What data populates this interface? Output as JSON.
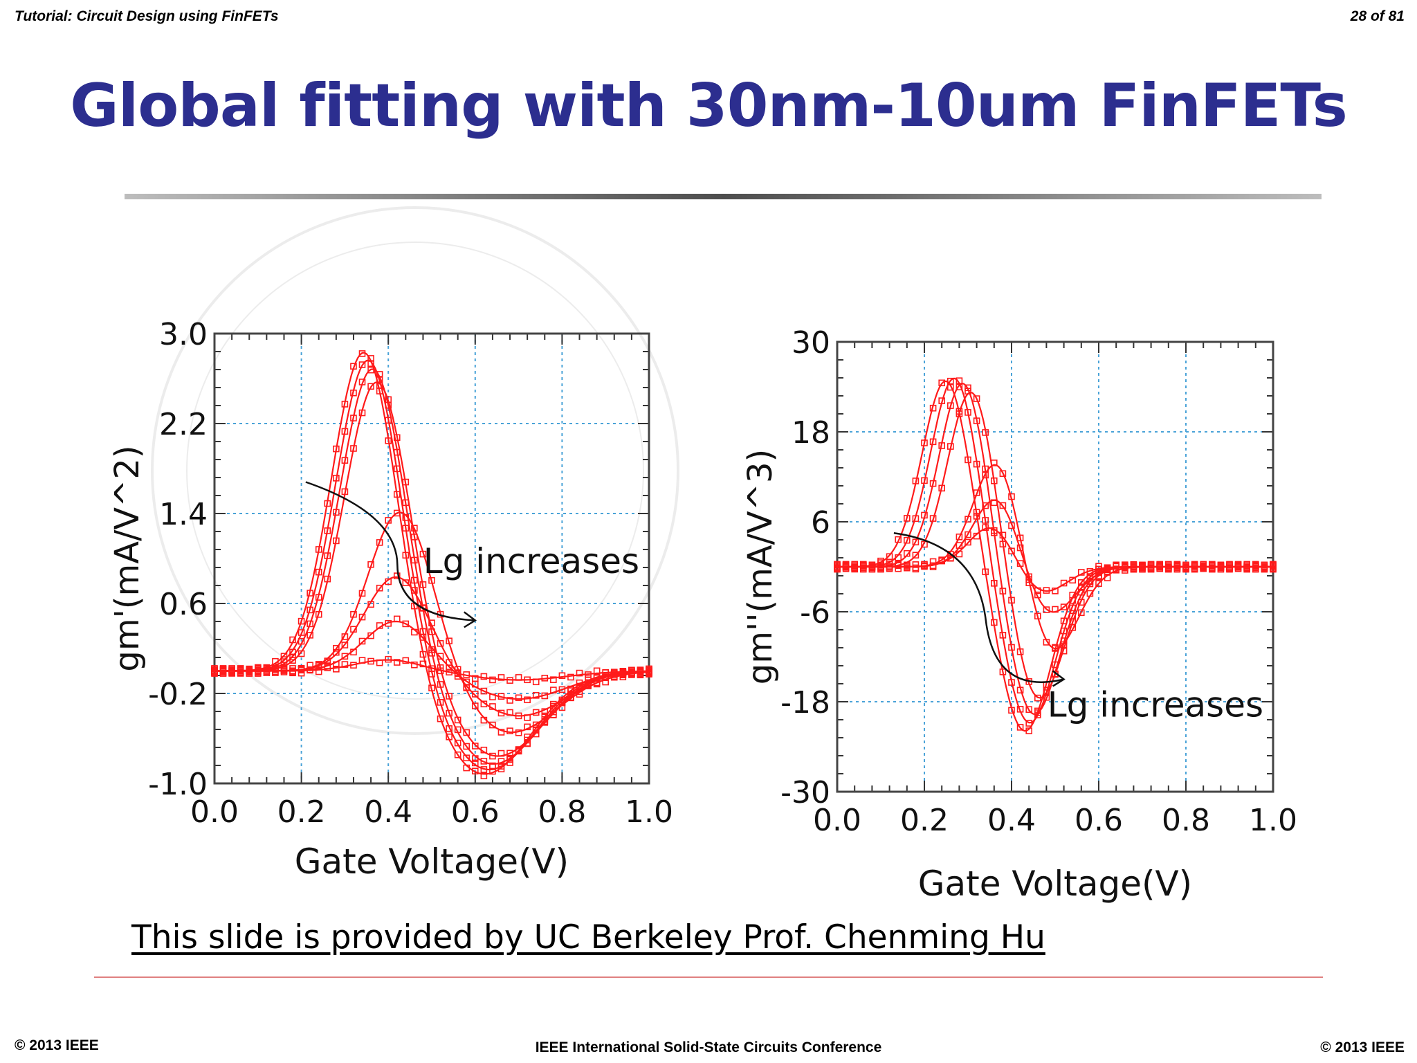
{
  "header": {
    "left": "Tutorial: Circuit Design using FinFETs",
    "right": "28 of 81"
  },
  "title": "Global fitting with 30nm-10um FinFETs",
  "credit": "This slide is provided by UC Berkeley Prof. Chenming Hu",
  "footer": {
    "left": "© 2013 IEEE",
    "center": "IEEE International Solid-State Circuits Conference",
    "right": "© 2013 IEEE"
  },
  "colors": {
    "title": "#2c2e8f",
    "data": "#ff1a1a",
    "grid": "#4aa3d8",
    "annotation": "#000000"
  },
  "chart_data": [
    {
      "type": "line",
      "ylabel": "gm'(mA/V^2)",
      "xlabel": "Gate Voltage(V)",
      "xlim": [
        0.0,
        1.0
      ],
      "ylim": [
        -1.0,
        3.0
      ],
      "xticks": [
        "0.0",
        "0.2",
        "0.4",
        "0.6",
        "0.8",
        "1.0"
      ],
      "yticks": [
        "-1.0",
        "-0.2",
        "0.6",
        "1.4",
        "2.2",
        "3.0"
      ],
      "grid": true,
      "annotation": {
        "text": "Lg increases",
        "arrow_from": [
          0.21,
          1.68
        ],
        "arrow_to": [
          0.6,
          0.45
        ]
      },
      "series": [
        {
          "peak_x": 0.345,
          "peak_y": 2.87,
          "trough_x": 0.62,
          "trough_y": -0.92
        },
        {
          "peak_x": 0.355,
          "peak_y": 2.8,
          "trough_x": 0.63,
          "trough_y": -0.88
        },
        {
          "peak_x": 0.365,
          "peak_y": 2.72,
          "trough_x": 0.64,
          "trough_y": -0.83
        },
        {
          "peak_x": 0.375,
          "peak_y": 2.6,
          "trough_x": 0.65,
          "trough_y": -0.76
        },
        {
          "peak_x": 0.43,
          "peak_y": 1.45,
          "trough_x": 0.68,
          "trough_y": -0.55
        },
        {
          "peak_x": 0.42,
          "peak_y": 0.85,
          "trough_x": 0.7,
          "trough_y": -0.4
        },
        {
          "peak_x": 0.42,
          "peak_y": 0.45,
          "trough_x": 0.7,
          "trough_y": -0.25
        },
        {
          "peak_x": 0.4,
          "peak_y": 0.1,
          "trough_x": 0.7,
          "trough_y": -0.08
        }
      ]
    },
    {
      "type": "line",
      "ylabel": "gm''(mA/V^3)",
      "xlabel": "Gate Voltage(V)",
      "xlim": [
        0.0,
        1.0
      ],
      "ylim": [
        -30,
        30
      ],
      "xticks": [
        "0.0",
        "0.2",
        "0.4",
        "0.6",
        "0.8",
        "1.0"
      ],
      "yticks": [
        "-30",
        "-18",
        "-6",
        "6",
        "18",
        "30"
      ],
      "grid": true,
      "annotation": {
        "text": "Lg increases",
        "arrow_from": [
          0.13,
          4.5
        ],
        "arrow_to": [
          0.52,
          -15
        ]
      },
      "series": [
        {
          "peak_x": 0.25,
          "peak_y": 25,
          "trough_x": 0.43,
          "trough_y": -22
        },
        {
          "peak_x": 0.27,
          "peak_y": 25.5,
          "trough_x": 0.44,
          "trough_y": -21
        },
        {
          "peak_x": 0.29,
          "peak_y": 25,
          "trough_x": 0.45,
          "trough_y": -20
        },
        {
          "peak_x": 0.31,
          "peak_y": 24,
          "trough_x": 0.46,
          "trough_y": -18
        },
        {
          "peak_x": 0.37,
          "peak_y": 15,
          "trough_x": 0.49,
          "trough_y": -12
        },
        {
          "peak_x": 0.37,
          "peak_y": 10,
          "trough_x": 0.48,
          "trough_y": -7
        },
        {
          "peak_x": 0.36,
          "peak_y": 6,
          "trough_x": 0.46,
          "trough_y": -4
        }
      ]
    }
  ]
}
